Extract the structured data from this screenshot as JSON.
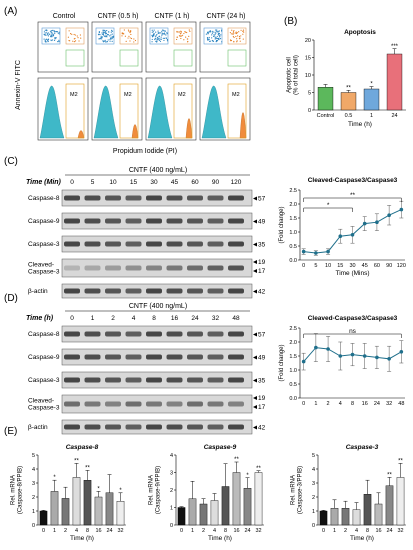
{
  "panelA": {
    "label": "(A)",
    "titles": [
      "Control",
      "CNTF (0.5 h)",
      "CNTF (1 h)",
      "CNTF (24 h)"
    ],
    "ylabel": "Annexin-V FITC",
    "xlabel": "Propidum Iodide (PI)",
    "gate_label": "M2"
  },
  "panelC": {
    "label": "(C)",
    "treatment": "CNTF (400 ng/mL)",
    "time_header": "Time (Min)",
    "lane_labels": [
      "0",
      "5",
      "10",
      "15",
      "30",
      "45",
      "60",
      "90",
      "120"
    ],
    "bands": [
      "Caspase-8",
      "Caspase-9",
      "Caspase-3",
      "Cleaved-\nCaspase-3",
      "β-actin"
    ],
    "mw": [
      "57",
      "49",
      "35",
      "19",
      "17",
      "42"
    ]
  },
  "panelD": {
    "label": "(D)",
    "treatment": "CNTF (400 ng/mL)",
    "time_header": "Time (h)",
    "lane_labels": [
      "0",
      "1",
      "2",
      "4",
      "8",
      "16",
      "24",
      "32",
      "48"
    ],
    "bands": [
      "Caspase-8",
      "Caspase-9",
      "Caspase-3",
      "Cleaved-\nCaspase-3",
      "β-actin"
    ],
    "mw": [
      "57",
      "49",
      "35",
      "19",
      "17",
      "42"
    ]
  },
  "panelE_label": "(E)",
  "chart_data": [
    {
      "id": "B",
      "label": "(B)",
      "type": "bar",
      "title": "Apoptosis",
      "categories": [
        "Control",
        "0.5",
        "1",
        "24"
      ],
      "values": [
        6.5,
        5.0,
        6.0,
        16.0
      ],
      "errors": [
        0.8,
        0.6,
        0.7,
        1.5
      ],
      "stars": [
        "",
        "**",
        "*",
        "***"
      ],
      "colors": [
        "#5cb85c",
        "#f0a868",
        "#6fa8dc",
        "#e8707a"
      ],
      "ylabel": "Apoptotic cell\n(% of total cell)",
      "xlabel": "Time (h)",
      "ylim": [
        0,
        20
      ],
      "yticks": [
        0,
        5,
        10,
        15,
        20
      ]
    },
    {
      "id": "C",
      "type": "line",
      "title": "Cleaved-Caspase3/Caspase3",
      "x": [
        "0",
        "5",
        "10",
        "15",
        "30",
        "45",
        "60",
        "90",
        "120"
      ],
      "values": [
        0.3,
        0.25,
        0.3,
        0.85,
        0.9,
        1.3,
        1.35,
        1.6,
        1.8
      ],
      "errors": [
        0.1,
        0.08,
        0.1,
        0.25,
        0.3,
        0.25,
        0.3,
        0.35,
        0.3
      ],
      "ylabel": "(Fold change)",
      "xlabel": "Time (Mins)",
      "ylim": [
        0,
        2.5
      ],
      "yticks": [
        0.0,
        0.5,
        1.0,
        1.5,
        2.0,
        2.5
      ],
      "brackets": [
        {
          "from": 0,
          "to": 4,
          "label": "*"
        },
        {
          "from": 0,
          "to": 8,
          "label": "**"
        }
      ]
    },
    {
      "id": "D",
      "type": "line",
      "title": "Cleaved-Caspase3/Caspase3",
      "x": [
        "0",
        "1",
        "2",
        "4",
        "8",
        "16",
        "24",
        "32",
        "48"
      ],
      "values": [
        1.3,
        1.8,
        1.75,
        1.5,
        1.55,
        1.5,
        1.45,
        1.4,
        1.65
      ],
      "errors": [
        0.3,
        0.5,
        0.45,
        0.5,
        0.4,
        0.45,
        0.4,
        0.45,
        0.4
      ],
      "ylabel": "(Fold change)",
      "xlabel": "",
      "ylim": [
        0,
        2.5
      ],
      "yticks": [
        0.0,
        0.5,
        1.0,
        1.5,
        2.0,
        2.5
      ],
      "brackets": [
        {
          "from": 0,
          "to": 8,
          "label": "ns"
        }
      ]
    },
    {
      "id": "E1",
      "type": "bar",
      "title": "Caspase-8",
      "categories": [
        "0",
        "1",
        "2",
        "4",
        "8",
        "16",
        "24",
        "32"
      ],
      "values": [
        1.0,
        2.4,
        1.9,
        3.4,
        3.2,
        2.0,
        2.3,
        1.7
      ],
      "errors": [
        0.05,
        0.8,
        0.8,
        1.0,
        0.7,
        0.4,
        1.3,
        0.6
      ],
      "stars": [
        "",
        "*",
        "",
        "**",
        "**",
        "*",
        "",
        "*"
      ],
      "ylabel": "Rel. mRNA\n(Caspase-8/PPIB)",
      "xlabel": "Time (h)",
      "ylim": [
        0,
        5
      ],
      "yticks": [
        0,
        1,
        2,
        3,
        4,
        5
      ]
    },
    {
      "id": "E2",
      "type": "bar",
      "title": "Caspase-9",
      "categories": [
        "0",
        "1",
        "2",
        "4",
        "8",
        "16",
        "24",
        "32"
      ],
      "values": [
        1.0,
        1.5,
        1.2,
        1.4,
        2.2,
        3.0,
        2.1,
        3.0
      ],
      "errors": [
        0.05,
        1.0,
        0.3,
        0.4,
        1.3,
        0.6,
        0.6,
        0.1
      ],
      "stars": [
        "",
        "",
        "",
        "",
        "",
        "**",
        "*",
        "**"
      ],
      "ylabel": "Rel. mRNA\n(Caspase-9/PPIB)",
      "xlabel": "Time (h)",
      "ylim": [
        0,
        4
      ],
      "yticks": [
        0,
        1,
        2,
        3,
        4
      ]
    },
    {
      "id": "E3",
      "type": "bar",
      "title": "Caspase-3",
      "categories": [
        "0",
        "1",
        "2",
        "4",
        "8",
        "16",
        "24",
        "32"
      ],
      "values": [
        1.0,
        1.2,
        1.2,
        1.1,
        2.2,
        1.5,
        2.8,
        3.4
      ],
      "errors": [
        0.05,
        0.6,
        0.5,
        0.5,
        1.0,
        0.8,
        0.6,
        1.0
      ],
      "stars": [
        "",
        "",
        "",
        "",
        "",
        "",
        "**",
        "**"
      ],
      "ylabel": "Rel. mRNA\n(Caspase-3/PPIB)",
      "xlabel": "Time (h)",
      "ylim": [
        0,
        5
      ],
      "yticks": [
        0,
        1,
        2,
        3,
        4,
        5
      ]
    }
  ]
}
